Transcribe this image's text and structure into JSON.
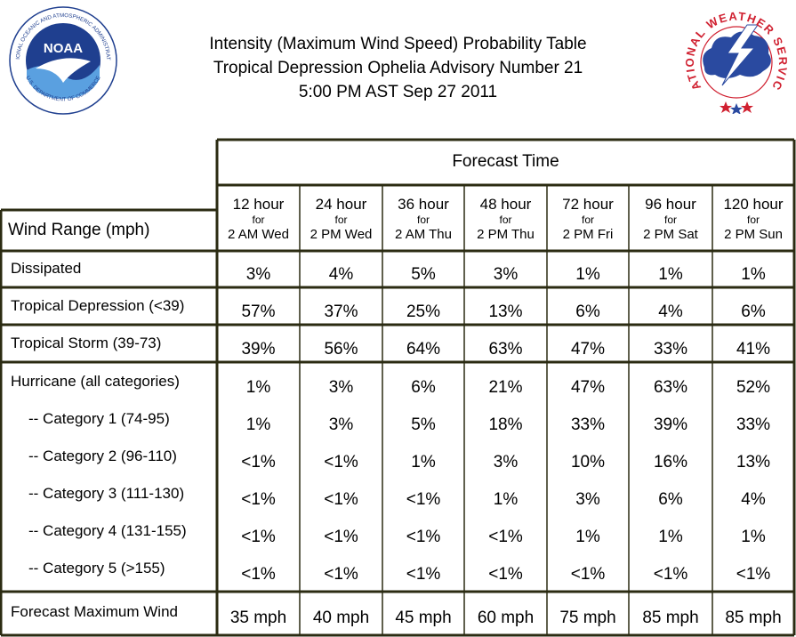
{
  "title": {
    "line1": "Intensity (Maximum Wind Speed) Probability Table",
    "line2": "Tropical Depression Ophelia Advisory Number 21",
    "line3": "5:00 PM AST Sep 27 2011"
  },
  "logos": {
    "noaa_text": "NOAA",
    "noaa_ring": "NATIONAL OCEANIC AND ATMOSPHERIC ADMINISTRATION",
    "noaa_ring_bottom": "U.S. DEPARTMENT OF COMMERCE",
    "nws_ring": "NATIONAL WEATHER SERVICE"
  },
  "colors": {
    "border": "#2b2b12",
    "noaa_blue": "#1f3f8f",
    "nws_red": "#d02030",
    "nws_blue": "#2a4aa0"
  },
  "chart_data": {
    "type": "table",
    "title": "Intensity (Maximum Wind Speed) Probability Table",
    "corner_label": "Wind Range (mph)",
    "group_header": "Forecast Time",
    "columns": [
      {
        "hour": "12 hour",
        "for": "for",
        "time": "2 AM Wed"
      },
      {
        "hour": "24 hour",
        "for": "for",
        "time": "2 PM Wed"
      },
      {
        "hour": "36 hour",
        "for": "for",
        "time": "2 AM Thu"
      },
      {
        "hour": "48 hour",
        "for": "for",
        "time": "2 PM Thu"
      },
      {
        "hour": "72 hour",
        "for": "for",
        "time": "2 PM Fri"
      },
      {
        "hour": "96 hour",
        "for": "for",
        "time": "2 PM Sat"
      },
      {
        "hour": "120 hour",
        "for": "for",
        "time": "2 PM Sun"
      }
    ],
    "rows": [
      {
        "label": "Dissipated",
        "values": [
          "3%",
          "4%",
          "5%",
          "3%",
          "1%",
          "1%",
          "1%"
        ]
      },
      {
        "label": "Tropical Depression (<39)",
        "values": [
          "57%",
          "37%",
          "25%",
          "13%",
          "6%",
          "4%",
          "6%"
        ]
      },
      {
        "label": "Tropical Storm (39-73)",
        "values": [
          "39%",
          "56%",
          "64%",
          "63%",
          "47%",
          "33%",
          "41%"
        ]
      },
      {
        "label": "Hurricane (all categories)",
        "values": [
          "1%",
          "3%",
          "6%",
          "21%",
          "47%",
          "63%",
          "52%"
        ]
      },
      {
        "label": "-- Category 1 (74-95)",
        "values": [
          "1%",
          "3%",
          "5%",
          "18%",
          "33%",
          "39%",
          "33%"
        ]
      },
      {
        "label": "-- Category 2 (96-110)",
        "values": [
          "<1%",
          "<1%",
          "1%",
          "3%",
          "10%",
          "16%",
          "13%"
        ]
      },
      {
        "label": "-- Category 3 (111-130)",
        "values": [
          "<1%",
          "<1%",
          "<1%",
          "1%",
          "3%",
          "6%",
          "4%"
        ]
      },
      {
        "label": "-- Category 4 (131-155)",
        "values": [
          "<1%",
          "<1%",
          "<1%",
          "<1%",
          "1%",
          "1%",
          "1%"
        ]
      },
      {
        "label": "-- Category 5 (>155)",
        "values": [
          "<1%",
          "<1%",
          "<1%",
          "<1%",
          "<1%",
          "<1%",
          "<1%"
        ]
      },
      {
        "label": "Forecast Maximum Wind",
        "values": [
          "35 mph",
          "40 mph",
          "45 mph",
          "60 mph",
          "75 mph",
          "85 mph",
          "85 mph"
        ]
      }
    ]
  }
}
